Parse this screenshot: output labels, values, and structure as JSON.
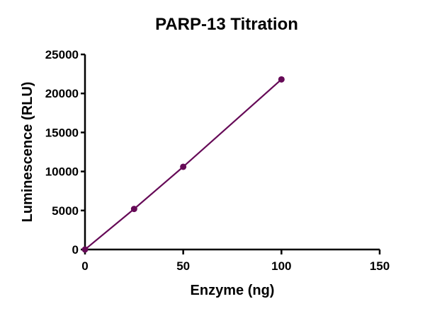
{
  "chart_data": {
    "type": "line",
    "title": "PARP-13 Titration",
    "xlabel": "Enzyme (ng)",
    "ylabel": "Luminescence (RLU)",
    "xlim": [
      0,
      150
    ],
    "ylim": [
      0,
      25000
    ],
    "xticks": [
      0,
      50,
      100,
      150
    ],
    "yticks": [
      0,
      5000,
      10000,
      15000,
      20000,
      25000
    ],
    "grid": false,
    "legend": null,
    "series": [
      {
        "name": "PARP-13",
        "color": "#660a57",
        "marker": "circle",
        "x": [
          0,
          25,
          50,
          100
        ],
        "values": [
          0,
          5200,
          10600,
          21800
        ]
      }
    ]
  },
  "colors": {
    "series": "#660a57",
    "axis": "#000000",
    "text": "#000000",
    "background": "#ffffff"
  }
}
